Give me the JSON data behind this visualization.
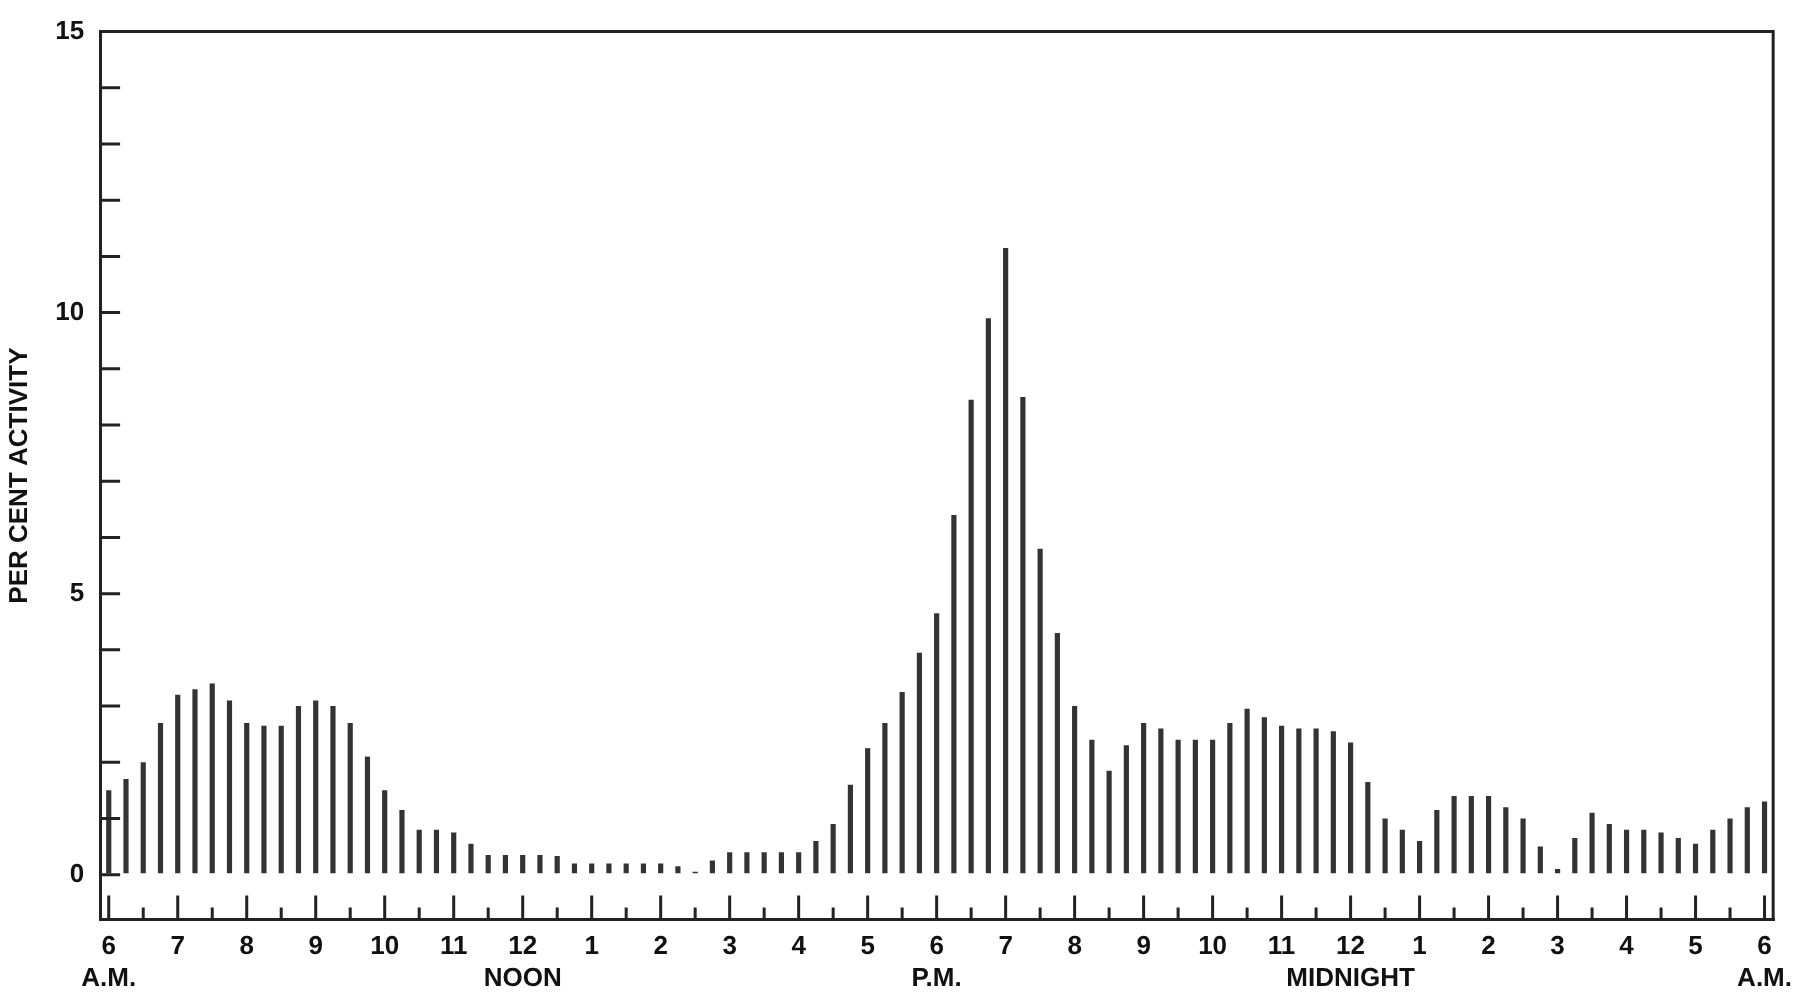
{
  "chart_data": {
    "type": "bar",
    "ylabel": "PER CENT ACTIVITY",
    "categories": [
      "6\nA.M.",
      null,
      null,
      null,
      "7",
      null,
      null,
      null,
      "8",
      null,
      null,
      null,
      "9",
      null,
      null,
      null,
      "10",
      null,
      null,
      null,
      "11",
      null,
      null,
      null,
      "12\nNOON",
      null,
      null,
      null,
      "1",
      null,
      null,
      null,
      "2",
      null,
      null,
      null,
      "3",
      null,
      null,
      null,
      "4",
      null,
      null,
      null,
      "5",
      null,
      null,
      null,
      "6\nP.M.",
      null,
      null,
      null,
      "7",
      null,
      null,
      null,
      "8",
      null,
      null,
      null,
      "9",
      null,
      null,
      null,
      "10",
      null,
      null,
      null,
      "11",
      null,
      null,
      null,
      "12\nMIDNIGHT",
      null,
      null,
      null,
      "1",
      null,
      null,
      null,
      "2",
      null,
      null,
      null,
      "3",
      null,
      null,
      null,
      "4",
      null,
      null,
      null,
      "5",
      null,
      null,
      null,
      "6\nA.M."
    ],
    "values": [
      1.5,
      1.7,
      2.0,
      2.7,
      3.2,
      3.3,
      3.4,
      3.1,
      2.7,
      2.65,
      2.65,
      3.0,
      3.1,
      3.0,
      2.7,
      2.1,
      1.5,
      1.15,
      0.8,
      0.8,
      0.75,
      0.55,
      0.35,
      0.35,
      0.35,
      0.35,
      0.33,
      0.2,
      0.2,
      0.2,
      0.2,
      0.2,
      0.2,
      0.15,
      0.05,
      0.25,
      0.4,
      0.4,
      0.4,
      0.4,
      0.4,
      0.6,
      0.9,
      1.6,
      2.25,
      2.7,
      3.25,
      3.95,
      4.65,
      6.4,
      8.45,
      9.9,
      11.15,
      8.5,
      5.8,
      4.3,
      3.0,
      2.4,
      1.85,
      2.3,
      2.7,
      2.6,
      2.4,
      2.4,
      2.4,
      2.7,
      2.95,
      2.8,
      2.65,
      2.6,
      2.6,
      2.55,
      2.35,
      1.65,
      1.0,
      0.8,
      0.6,
      1.15,
      1.4,
      1.4,
      1.4,
      1.2,
      1.0,
      0.5,
      0.1,
      0.65,
      1.1,
      0.9,
      0.8,
      0.8,
      0.75,
      0.65,
      0.55,
      0.8,
      1.0,
      1.2,
      1.3
    ],
    "color": "#333333",
    "ylim": [
      -0.8,
      15
    ],
    "yticks": [
      0,
      {
        "value": 1,
        "label": null
      },
      {
        "value": 2,
        "label": null
      },
      {
        "value": 3,
        "label": null
      },
      {
        "value": 4,
        "label": null
      },
      5,
      {
        "value": 6,
        "label": null
      },
      {
        "value": 7,
        "label": null
      },
      {
        "value": 8,
        "label": null
      },
      {
        "value": 9,
        "label": null
      },
      10,
      {
        "value": 11,
        "label": null
      },
      {
        "value": 12,
        "label": null
      },
      {
        "value": 13,
        "label": null
      },
      {
        "value": 14,
        "label": null
      },
      15
    ],
    "grid": false,
    "legend": false
  }
}
